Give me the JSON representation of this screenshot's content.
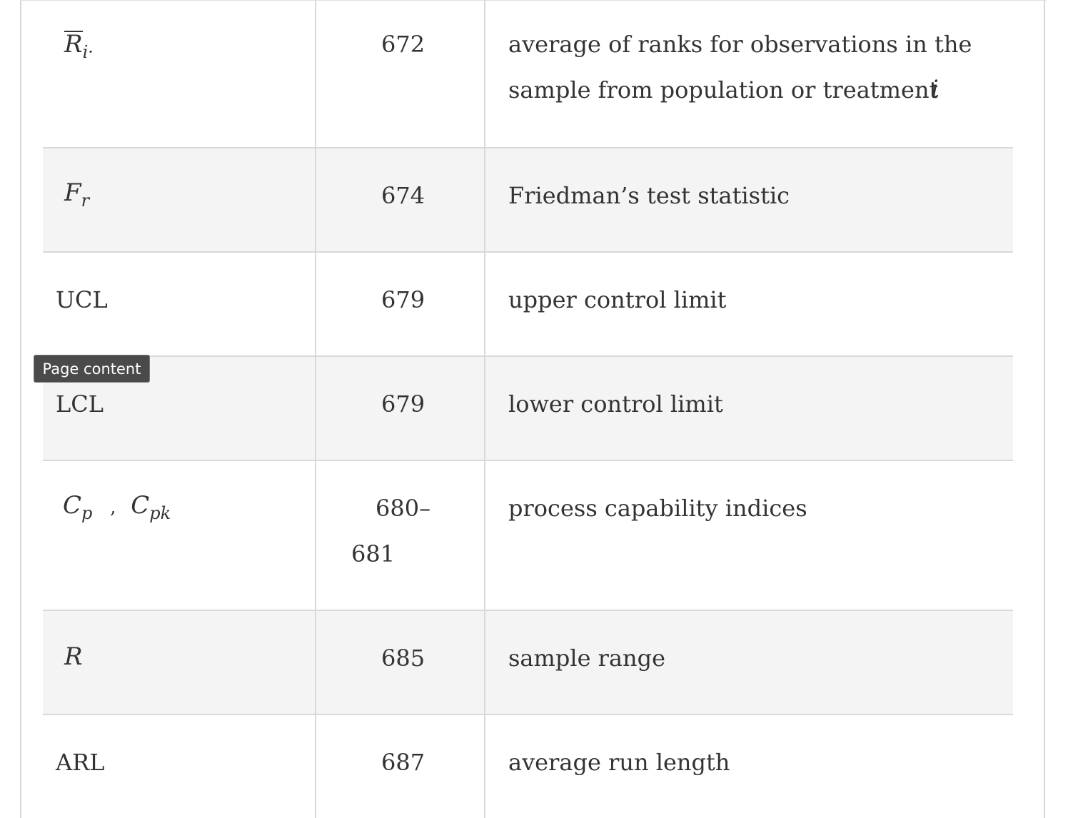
{
  "table": {
    "rows": [
      {
        "symbol": {
          "base": "R",
          "sub": "i·",
          "overline": true
        },
        "page": "672",
        "desc_lines": [
          "average of ranks for observations in the",
          "sample from population or treatment"
        ],
        "desc_var": "i"
      },
      {
        "symbol": {
          "base": "F",
          "sub": "r"
        },
        "page": "674",
        "desc_lines": [
          "Friedman’s test statistic"
        ]
      },
      {
        "symbol_text": "UCL",
        "page": "679",
        "desc_lines": [
          "upper control limit"
        ]
      },
      {
        "symbol_text": "LCL",
        "page": "679",
        "desc_lines": [
          "lower control limit"
        ]
      },
      {
        "symbol": {
          "base": "C",
          "sub": "p",
          "sep": ",",
          "base2": "C",
          "sub2": "pk"
        },
        "page_lines": [
          "680–",
          "681"
        ],
        "desc_lines": [
          "process capability indices"
        ]
      },
      {
        "symbol": {
          "base": "R"
        },
        "page": "685",
        "desc_lines": [
          "sample range"
        ]
      },
      {
        "symbol_text": "ARL",
        "page": "687",
        "desc_lines": [
          "average run length"
        ]
      }
    ]
  },
  "tooltip": {
    "label": "Page content"
  }
}
